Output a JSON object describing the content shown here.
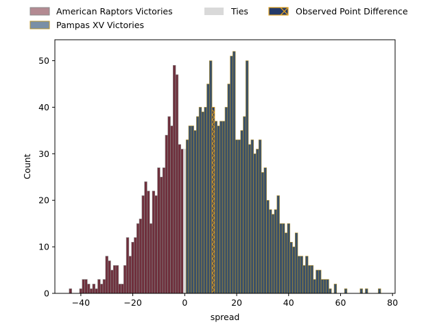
{
  "chart_data": {
    "type": "bar",
    "title": "",
    "xlabel": "spread",
    "ylabel": "Count",
    "xlim": [
      -50,
      81
    ],
    "ylim": [
      0,
      54.5
    ],
    "xticks": [
      -40,
      -20,
      0,
      20,
      40,
      60,
      80
    ],
    "yticks": [
      0,
      10,
      20,
      30,
      40,
      50
    ],
    "legend_position": "top, outside plot",
    "legend": [
      {
        "key": "raptors",
        "label": "American Raptors Victories"
      },
      {
        "key": "ties",
        "label": "Ties"
      },
      {
        "key": "observed",
        "label": "Observed Point Difference"
      },
      {
        "key": "pampas",
        "label": "Pampas XV Victories"
      }
    ],
    "colors": {
      "raptors_fill": "#6e2f3c",
      "raptors_edge": "#8a8a8a",
      "raptors_legend_fill": "#b38a92",
      "pampas_fill": "#3a5068",
      "pampas_edge": "#b8952e",
      "pampas_legend_fill": "#7a8fa6",
      "ties_fill": "#d9d9d9",
      "observed_fill": "#243a6a",
      "observed_edge": "#e0a020"
    },
    "observed_value": 11,
    "tie_value": 0,
    "bins": {
      "raptors": {
        "x": [
          -44,
          -40,
          -39,
          -38,
          -37,
          -36,
          -35,
          -34,
          -33,
          -32,
          -31,
          -30,
          -29,
          -28,
          -27,
          -26,
          -25,
          -24,
          -23,
          -22,
          -21,
          -20,
          -19,
          -18,
          -17,
          -16,
          -15,
          -14,
          -13,
          -12,
          -11,
          -10,
          -9,
          -8,
          -7,
          -6,
          -5,
          -4,
          -3,
          -2,
          -1
        ],
        "counts": [
          1,
          1,
          3,
          3,
          2,
          1,
          2,
          1,
          3,
          2,
          3,
          8,
          7,
          5,
          6,
          6,
          2,
          2,
          6,
          12,
          8,
          11,
          12,
          15,
          16,
          21,
          24,
          22,
          15,
          22,
          21,
          27,
          25,
          27,
          34,
          38,
          36,
          49,
          47,
          32,
          31
        ]
      },
      "ties": {
        "x": [
          0
        ],
        "counts": [
          31
        ]
      },
      "pampas": {
        "x": [
          1,
          2,
          3,
          4,
          5,
          6,
          7,
          8,
          9,
          10,
          11,
          12,
          13,
          14,
          15,
          16,
          17,
          18,
          19,
          20,
          21,
          22,
          23,
          24,
          25,
          26,
          27,
          28,
          29,
          30,
          31,
          32,
          33,
          34,
          35,
          36,
          37,
          38,
          39,
          40,
          41,
          42,
          43,
          44,
          45,
          46,
          47,
          48,
          49,
          50,
          51,
          52,
          53,
          54,
          55,
          56,
          58,
          62,
          68,
          70,
          75
        ],
        "counts": [
          33,
          36,
          36,
          35,
          38,
          40,
          39,
          40,
          45,
          50,
          40,
          37,
          36,
          37,
          37,
          40,
          45,
          51,
          52,
          33,
          33,
          35,
          38,
          50,
          32,
          33,
          30,
          31,
          33,
          26,
          27,
          20,
          18,
          17,
          18,
          21,
          15,
          15,
          13,
          15,
          11,
          10,
          13,
          8,
          8,
          6,
          8,
          6,
          6,
          3,
          5,
          5,
          3,
          3,
          3,
          1,
          2,
          1,
          1,
          1,
          1
        ]
      }
    }
  }
}
